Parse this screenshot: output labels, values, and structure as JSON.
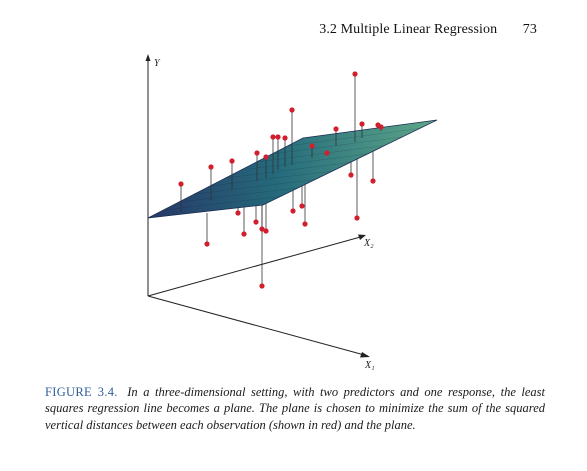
{
  "header": {
    "section_title": "3.2 Multiple Linear Regression",
    "page_number": "73"
  },
  "figure": {
    "axis_labels": {
      "y": "Y",
      "x1": "X₁",
      "x2": "X₂"
    },
    "colors": {
      "point": "#d11f2e",
      "residual_line": "#333333",
      "plane_low": "#2c3e73",
      "plane_mid": "#2b8a8c",
      "plane_high": "#6ec39b",
      "axis": "#222222"
    }
  },
  "caption": {
    "label": "FIGURE 3.4.",
    "text": "In a three-dimensional setting, with two predictors and one response, the least squares regression line becomes a plane. The plane is chosen to minimize the sum of the squared vertical distances between each observation (shown in red) and the plane."
  }
}
